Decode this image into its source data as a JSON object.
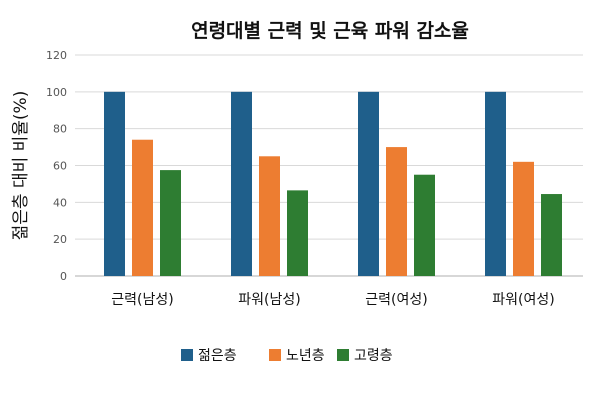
{
  "chart_data": {
    "type": "bar",
    "title": "연령대별 근력 및 근육 파워 감소율",
    "xlabel": "",
    "ylabel": "젊은층 대비 비율(%)",
    "ylim": [
      0,
      120
    ],
    "yticks": [
      0,
      20,
      40,
      60,
      80,
      100,
      120
    ],
    "grid": true,
    "legend_position": "bottom",
    "categories": [
      "근력(남성)",
      "파워(남성)",
      "근력(여성)",
      "파워(여성)"
    ],
    "series": [
      {
        "name": "젊은층",
        "color": "#1f5f8b",
        "values": [
          100,
          100,
          100,
          100
        ]
      },
      {
        "name": "노년층",
        "color": "#ed7d31",
        "values": [
          74,
          65,
          70,
          62
        ]
      },
      {
        "name": "고령층",
        "color": "#2e7d32",
        "values": [
          57.5,
          46.5,
          55,
          44.5
        ]
      }
    ]
  }
}
